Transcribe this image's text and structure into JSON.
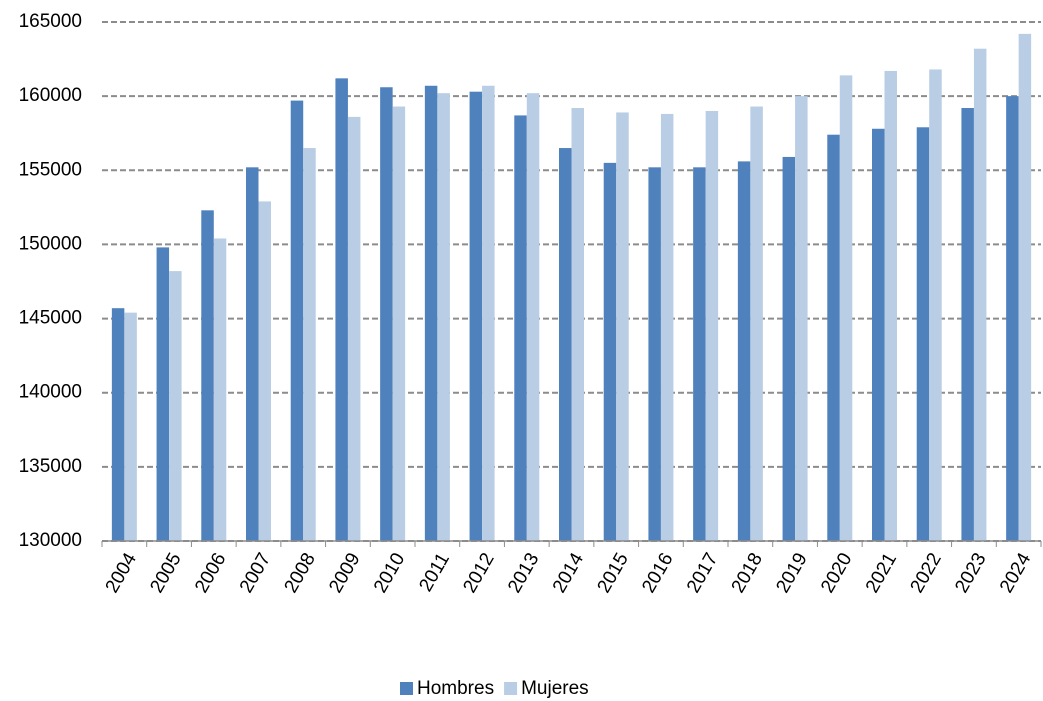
{
  "chart_data": {
    "type": "bar",
    "categories": [
      "2004",
      "2005",
      "2006",
      "2007",
      "2008",
      "2009",
      "2010",
      "2011",
      "2012",
      "2013",
      "2014",
      "2015",
      "2016",
      "2017",
      "2018",
      "2019",
      "2020",
      "2021",
      "2022",
      "2023",
      "2024"
    ],
    "series": [
      {
        "name": "Hombres",
        "color": "#4f81bd",
        "values": [
          145700,
          149800,
          152300,
          155200,
          159700,
          161200,
          160600,
          160700,
          160300,
          158700,
          156500,
          155500,
          155200,
          155200,
          155600,
          155900,
          157400,
          157800,
          157900,
          159200,
          160000
        ]
      },
      {
        "name": "Mujeres",
        "color": "#b9cde5",
        "values": [
          145400,
          148200,
          150400,
          152900,
          156500,
          158600,
          159300,
          160200,
          160700,
          160200,
          159200,
          158900,
          158800,
          159000,
          159300,
          160000,
          161400,
          161700,
          161800,
          163200,
          164200
        ]
      }
    ],
    "ylim": [
      130000,
      165000
    ],
    "yticks": [
      130000,
      135000,
      140000,
      145000,
      150000,
      155000,
      160000,
      165000
    ],
    "grid": true,
    "legend": "bottom"
  }
}
